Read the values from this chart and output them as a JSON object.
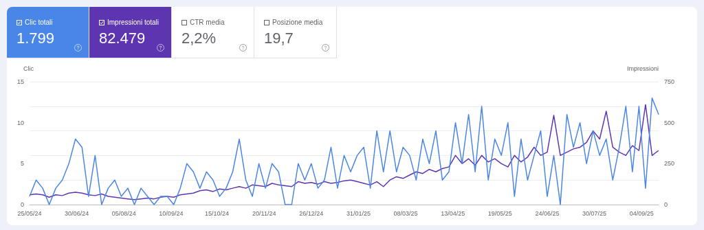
{
  "chart_data": {
    "type": "line",
    "annotations": [
      "Clic totali",
      "1.799",
      "Impressioni totali",
      "82.479",
      "CTR media",
      "2,2%",
      "Posizione media",
      "19,7"
    ],
    "ylabel": "Clic",
    "y2label": "Impressioni",
    "x": [
      "2024-05-25",
      "2024-05-30",
      "2024-06-04",
      "2024-06-09",
      "2024-06-14",
      "2024-06-19",
      "2024-06-24",
      "2024-06-29",
      "2024-07-04",
      "2024-07-09",
      "2024-07-14",
      "2024-07-19",
      "2024-07-24",
      "2024-07-29",
      "2024-08-03",
      "2024-08-08",
      "2024-08-13",
      "2024-08-18",
      "2024-08-23",
      "2024-08-28",
      "2024-09-02",
      "2024-09-07",
      "2024-09-12",
      "2024-09-17",
      "2024-09-22",
      "2024-09-27",
      "2024-10-02",
      "2024-10-07",
      "2024-10-12",
      "2024-10-17",
      "2024-10-22",
      "2024-10-27",
      "2024-11-01",
      "2024-11-06",
      "2024-11-11",
      "2024-11-16",
      "2024-11-21",
      "2024-11-26",
      "2024-12-01",
      "2024-12-06",
      "2024-12-11",
      "2024-12-16",
      "2024-12-21",
      "2024-12-26",
      "2024-12-31",
      "2025-01-05",
      "2025-01-10",
      "2025-01-15",
      "2025-01-20",
      "2025-01-25",
      "2025-01-30",
      "2025-02-04",
      "2025-02-09",
      "2025-02-14",
      "2025-02-19",
      "2025-02-24",
      "2025-03-01",
      "2025-03-06",
      "2025-03-11",
      "2025-03-16",
      "2025-03-21",
      "2025-03-26",
      "2025-03-31",
      "2025-04-05",
      "2025-04-10",
      "2025-04-15",
      "2025-04-20",
      "2025-04-25",
      "2025-04-30",
      "2025-05-05",
      "2025-05-10",
      "2025-05-15",
      "2025-05-20",
      "2025-05-25",
      "2025-05-30",
      "2025-06-04",
      "2025-06-09",
      "2025-06-14",
      "2025-06-19",
      "2025-06-24",
      "2025-06-29",
      "2025-07-04",
      "2025-07-09",
      "2025-07-14",
      "2025-07-19",
      "2025-07-24",
      "2025-07-29",
      "2025-08-03",
      "2025-08-08",
      "2025-08-13",
      "2025-08-18",
      "2025-08-23",
      "2025-08-28",
      "2025-09-02",
      "2025-09-07",
      "2025-09-12",
      "2025-09-17"
    ],
    "series": [
      {
        "color": "#4a86e8",
        "values": [
          1,
          3,
          2,
          0,
          2,
          3,
          5,
          8,
          7,
          1,
          6,
          0,
          2,
          3,
          1,
          2,
          0,
          2,
          1,
          0,
          1,
          1,
          0,
          2,
          5,
          4,
          2,
          4,
          3,
          1,
          2,
          4,
          8,
          3,
          1,
          5,
          2,
          5,
          4,
          0,
          0,
          5,
          3,
          5,
          2,
          3,
          7,
          2,
          6,
          4,
          6,
          7,
          2,
          9,
          4,
          9,
          4,
          7,
          6,
          3,
          8,
          5,
          9,
          3,
          4,
          10,
          5,
          11,
          4,
          12,
          3,
          8,
          6,
          10,
          1,
          8,
          3,
          6,
          9,
          1,
          6,
          0,
          11,
          7,
          10,
          5,
          9,
          6,
          8,
          3,
          7,
          12,
          4,
          12,
          2,
          13,
          11
        ]
      },
      {
        "color": "#5e35b1",
        "axis": "y2",
        "values": [
          60,
          65,
          60,
          45,
          60,
          55,
          70,
          75,
          70,
          60,
          55,
          65,
          50,
          45,
          40,
          35,
          30,
          35,
          40,
          35,
          45,
          50,
          45,
          60,
          65,
          70,
          85,
          90,
          80,
          95,
          90,
          100,
          110,
          100,
          120,
          115,
          110,
          130,
          120,
          115,
          110,
          140,
          130,
          135,
          125,
          140,
          130,
          135,
          145,
          150,
          140,
          130,
          120,
          140,
          110,
          150,
          170,
          160,
          180,
          200,
          190,
          215,
          200,
          220,
          230,
          300,
          250,
          280,
          240,
          300,
          260,
          280,
          250,
          230,
          300,
          260,
          290,
          350,
          300,
          320,
          545,
          300,
          320,
          340,
          350,
          380,
          450,
          400,
          570,
          350,
          320,
          300,
          360,
          330,
          610,
          300,
          330
        ]
      }
    ],
    "xlim": [
      "2024-05-25",
      "2025-09-17"
    ],
    "xticks": [
      {
        "value": "2024-05-25",
        "label": "25/05/24"
      },
      {
        "value": "2024-06-30",
        "label": "30/06/24"
      },
      {
        "value": "2024-08-05",
        "label": "05/08/24"
      },
      {
        "value": "2024-09-10",
        "label": "10/09/24"
      },
      {
        "value": "2024-10-15",
        "label": "15/10/24"
      },
      {
        "value": "2024-11-20",
        "label": "20/11/24"
      },
      {
        "value": "2024-12-26",
        "label": "26/12/24"
      },
      {
        "value": "2025-01-31",
        "label": "31/01/25"
      },
      {
        "value": "2025-03-08",
        "label": "08/03/25"
      },
      {
        "value": "2025-04-13",
        "label": "13/04/25"
      },
      {
        "value": "2025-05-19",
        "label": "19/05/25"
      },
      {
        "value": "2025-06-24",
        "label": "24/06/25"
      },
      {
        "value": "2025-07-30",
        "label": "30/07/25"
      },
      {
        "value": "2025-09-04",
        "label": "04/09/25"
      }
    ],
    "ylim": [
      0,
      15
    ],
    "yticks": [
      0,
      5,
      10,
      15
    ],
    "y2lim": [
      0,
      750
    ],
    "y2ticks": [
      0,
      250,
      500,
      750
    ],
    "grid": "y",
    "marker": "none",
    "line_style": "solid"
  }
}
